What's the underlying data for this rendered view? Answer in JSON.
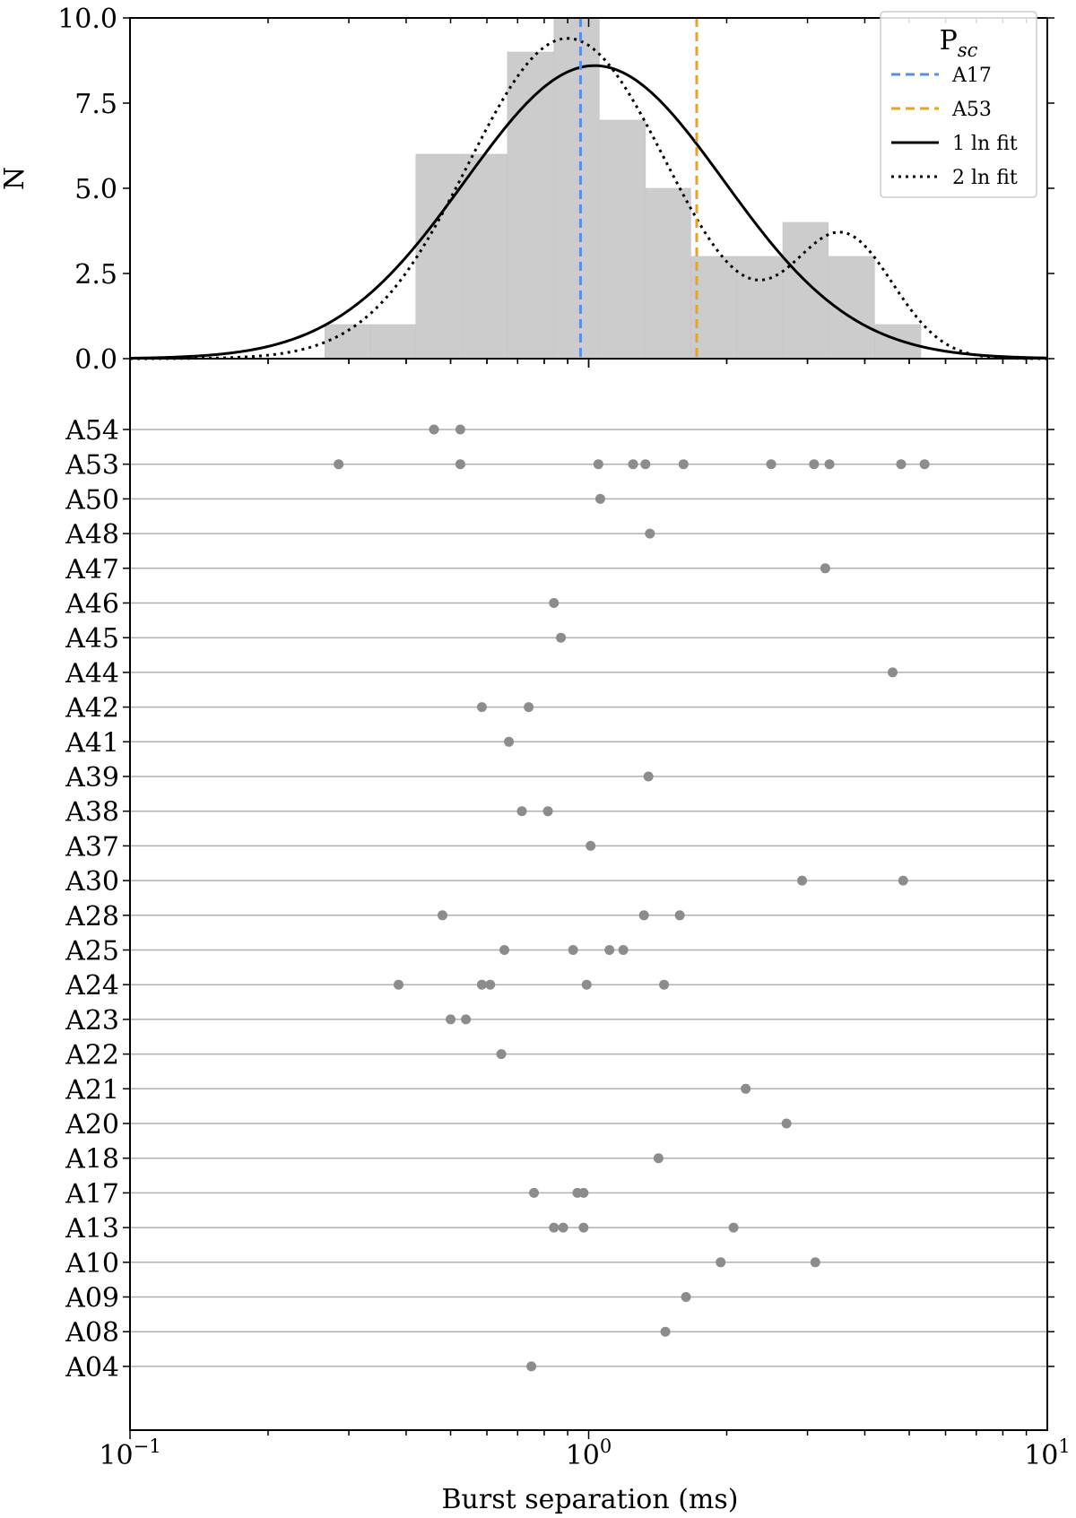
{
  "chart_data": [
    {
      "type": "bar",
      "subtype": "histogram",
      "ylabel": "N",
      "xscale": "log",
      "xlim": [
        0.1,
        10
      ],
      "ylim": [
        0,
        10
      ],
      "yticks": [
        0.0,
        2.5,
        5.0,
        7.5,
        10.0
      ],
      "ytick_labels": [
        "0.0",
        "2.5",
        "5.0",
        "7.5",
        "10.0"
      ],
      "bin_edges": [
        0.266,
        0.335,
        0.42,
        0.53,
        0.665,
        0.84,
        1.055,
        1.33,
        1.67,
        2.1,
        2.65,
        3.33,
        4.2,
        5.3,
        6.65
      ],
      "counts": [
        1,
        1,
        6,
        6,
        9,
        10,
        7,
        5,
        3,
        3,
        4,
        3,
        1,
        0
      ],
      "bar_color": "#cccccc",
      "series": [
        {
          "name": "A17",
          "kind": "vline",
          "x": 0.96,
          "color": "#5b8ee6"
        },
        {
          "name": "A53",
          "kind": "vline",
          "x": 1.72,
          "color": "#e6a422"
        },
        {
          "name": "1 ln fit",
          "kind": "curve",
          "color": "#000000",
          "style": "solid",
          "model": "lognormal",
          "amplitude": 8.6,
          "mu": 1.03,
          "sigma_ln": 0.65
        },
        {
          "name": "2 ln fit",
          "kind": "curve",
          "color": "#000000",
          "style": "dotted",
          "model": "sum_of_two_lognormals",
          "components": [
            {
              "amplitude": 9.4,
              "mu": 0.9,
              "sigma_ln": 0.5
            },
            {
              "amplitude": 3.5,
              "mu": 3.6,
              "sigma_ln": 0.25
            }
          ]
        }
      ],
      "legend": {
        "title_main": "P",
        "title_sub": "sc",
        "placement": "top-right"
      }
    },
    {
      "type": "scatter",
      "xlabel": "Burst separation (ms)",
      "xscale": "log",
      "xlim": [
        0.1,
        10
      ],
      "xtick_labels": [
        {
          "base": "10",
          "exp": "−1",
          "value": 0.1
        },
        {
          "base": "10",
          "exp": "0",
          "value": 1
        },
        {
          "base": "10",
          "exp": "1",
          "value": 10
        }
      ],
      "point_color": "#8c8c8c",
      "row_line_color": "#b0b0b0",
      "rows": [
        {
          "label": "A54",
          "values": [
            0.46,
            0.525
          ]
        },
        {
          "label": "A53",
          "values": [
            0.285,
            0.525,
            1.05,
            1.25,
            1.33,
            1.61,
            2.5,
            3.1,
            3.35,
            4.8,
            5.4
          ]
        },
        {
          "label": "A50",
          "values": [
            1.06
          ]
        },
        {
          "label": "A48",
          "values": [
            1.36
          ]
        },
        {
          "label": "A47",
          "values": [
            3.28
          ]
        },
        {
          "label": "A46",
          "values": [
            0.84
          ]
        },
        {
          "label": "A45",
          "values": [
            0.87
          ]
        },
        {
          "label": "A44",
          "values": [
            4.6
          ]
        },
        {
          "label": "A42",
          "values": [
            0.585,
            0.74
          ]
        },
        {
          "label": "A41",
          "values": [
            0.67
          ]
        },
        {
          "label": "A39",
          "values": [
            1.35
          ]
        },
        {
          "label": "A38",
          "values": [
            0.715,
            0.815
          ]
        },
        {
          "label": "A37",
          "values": [
            1.01
          ]
        },
        {
          "label": "A30",
          "values": [
            2.92,
            4.85
          ]
        },
        {
          "label": "A28",
          "values": [
            0.48,
            1.32,
            1.58
          ]
        },
        {
          "label": "A25",
          "values": [
            0.655,
            0.925,
            1.11,
            1.19
          ]
        },
        {
          "label": "A24",
          "values": [
            0.385,
            0.585,
            0.61,
            0.99,
            1.46
          ]
        },
        {
          "label": "A23",
          "values": [
            0.5,
            0.54
          ]
        },
        {
          "label": "A22",
          "values": [
            0.645
          ]
        },
        {
          "label": "A21",
          "values": [
            2.2
          ]
        },
        {
          "label": "A20",
          "values": [
            2.7
          ]
        },
        {
          "label": "A18",
          "values": [
            1.42
          ]
        },
        {
          "label": "A17",
          "values": [
            0.76,
            0.945,
            0.975
          ]
        },
        {
          "label": "A13",
          "values": [
            0.84,
            0.88,
            0.975,
            2.07
          ]
        },
        {
          "label": "A10",
          "values": [
            1.94,
            3.12
          ]
        },
        {
          "label": "A09",
          "values": [
            1.63
          ]
        },
        {
          "label": "A08",
          "values": [
            1.47
          ]
        },
        {
          "label": "A04",
          "values": [
            0.75
          ]
        }
      ]
    }
  ]
}
